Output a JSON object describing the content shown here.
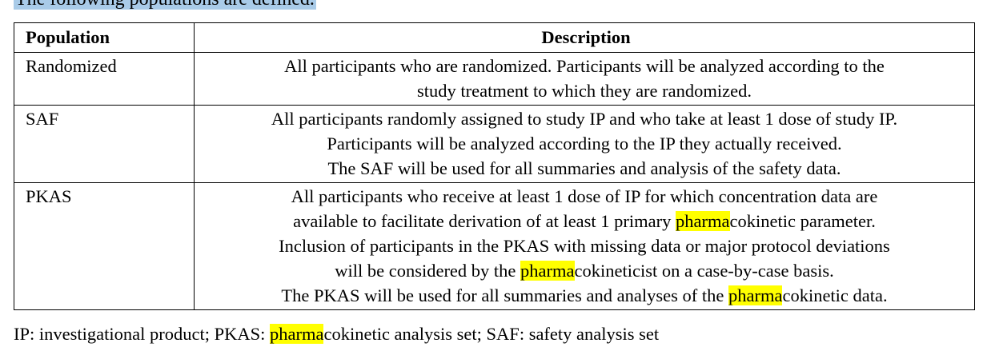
{
  "heading": "The following populations are defined.",
  "table": {
    "header": [
      "Population",
      "Description"
    ],
    "rows": [
      {
        "population": "Randomized",
        "lines": [
          [
            "All participants who are randomized.  Participants will be analyzed according to the"
          ],
          [
            "study treatment to which they are randomized."
          ]
        ]
      },
      {
        "population": "SAF",
        "lines": [
          [
            "All participants randomly assigned to study IP and who take at least 1 dose of study IP."
          ],
          [
            "Participants will be analyzed according to the IP they actually received."
          ],
          [
            "The SAF will be used for all summaries and analysis of the safety data."
          ]
        ]
      },
      {
        "population": "PKAS",
        "lines": [
          [
            "All participants who receive at least 1 dose of IP for which concentration data are"
          ],
          [
            "available to facilitate derivation of at least 1 primary ",
            {
              "text": "pharma",
              "highlight": true
            },
            "cokinetic parameter."
          ],
          [
            "Inclusion of participants in the PKAS with missing data or major protocol deviations"
          ],
          [
            "will be considered by the ",
            {
              "text": "pharma",
              "highlight": true
            },
            "cokineticist on a case-by-case basis."
          ],
          [
            "The PKAS will be used for all summaries and analyses of the ",
            {
              "text": "pharma",
              "highlight": true
            },
            "cokinetic data."
          ]
        ]
      }
    ]
  },
  "footnote": [
    "IP: investigational product; PKAS: ",
    {
      "text": "pharma",
      "highlight": true
    },
    "cokinetic analysis set; SAF: safety analysis set"
  ]
}
